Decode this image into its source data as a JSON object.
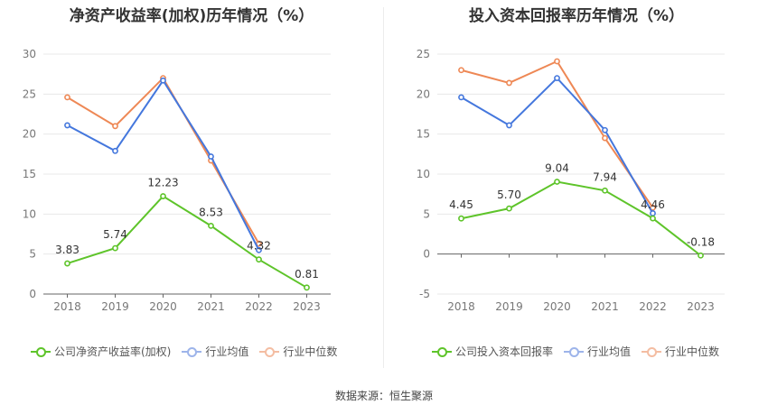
{
  "source_label": "数据来源：恒生聚源",
  "chart_data": [
    {
      "type": "line",
      "title": "净资产收益率(加权)历年情况（%）",
      "categories": [
        "2018",
        "2019",
        "2020",
        "2021",
        "2022",
        "2023"
      ],
      "ylim": [
        0,
        30
      ],
      "yticks": [
        0,
        5,
        10,
        15,
        20,
        25,
        30
      ],
      "grid": true,
      "legend_position": "bottom-left",
      "series": [
        {
          "name": "公司净资产收益率(加权)",
          "color": "#5ec42a",
          "labels_shown": true,
          "values": [
            3.83,
            5.74,
            12.23,
            8.53,
            4.32,
            0.81
          ],
          "value_labels": [
            "3.83",
            "5.74",
            "12.23",
            "8.53",
            "4.32",
            "0.81"
          ]
        },
        {
          "name": "行业均值",
          "color": "#4477dd",
          "labels_shown": false,
          "values": [
            21.1,
            17.9,
            26.7,
            17.2,
            5.5,
            null
          ]
        },
        {
          "name": "行业中位数",
          "color": "#ee8855",
          "labels_shown": false,
          "values": [
            24.6,
            21.0,
            27.0,
            16.7,
            6.3,
            null
          ]
        }
      ]
    },
    {
      "type": "line",
      "title": "投入资本回报率历年情况（%）",
      "categories": [
        "2018",
        "2019",
        "2020",
        "2021",
        "2022",
        "2023"
      ],
      "ylim": [
        -5,
        25
      ],
      "yticks": [
        -5,
        0,
        5,
        10,
        15,
        20,
        25
      ],
      "grid": true,
      "legend_position": "bottom-left",
      "series": [
        {
          "name": "公司投入资本回报率",
          "color": "#5ec42a",
          "labels_shown": true,
          "values": [
            4.45,
            5.7,
            9.04,
            7.94,
            4.46,
            -0.18
          ],
          "value_labels": [
            "4.45",
            "5.70",
            "9.04",
            "7.94",
            "4.46",
            "-0.18"
          ]
        },
        {
          "name": "行业均值",
          "color": "#4477dd",
          "labels_shown": false,
          "values": [
            19.6,
            16.1,
            22.0,
            15.5,
            5.1,
            null
          ]
        },
        {
          "name": "行业中位数",
          "color": "#ee8855",
          "labels_shown": false,
          "values": [
            23.0,
            21.4,
            24.1,
            14.5,
            5.8,
            null
          ]
        }
      ]
    }
  ]
}
